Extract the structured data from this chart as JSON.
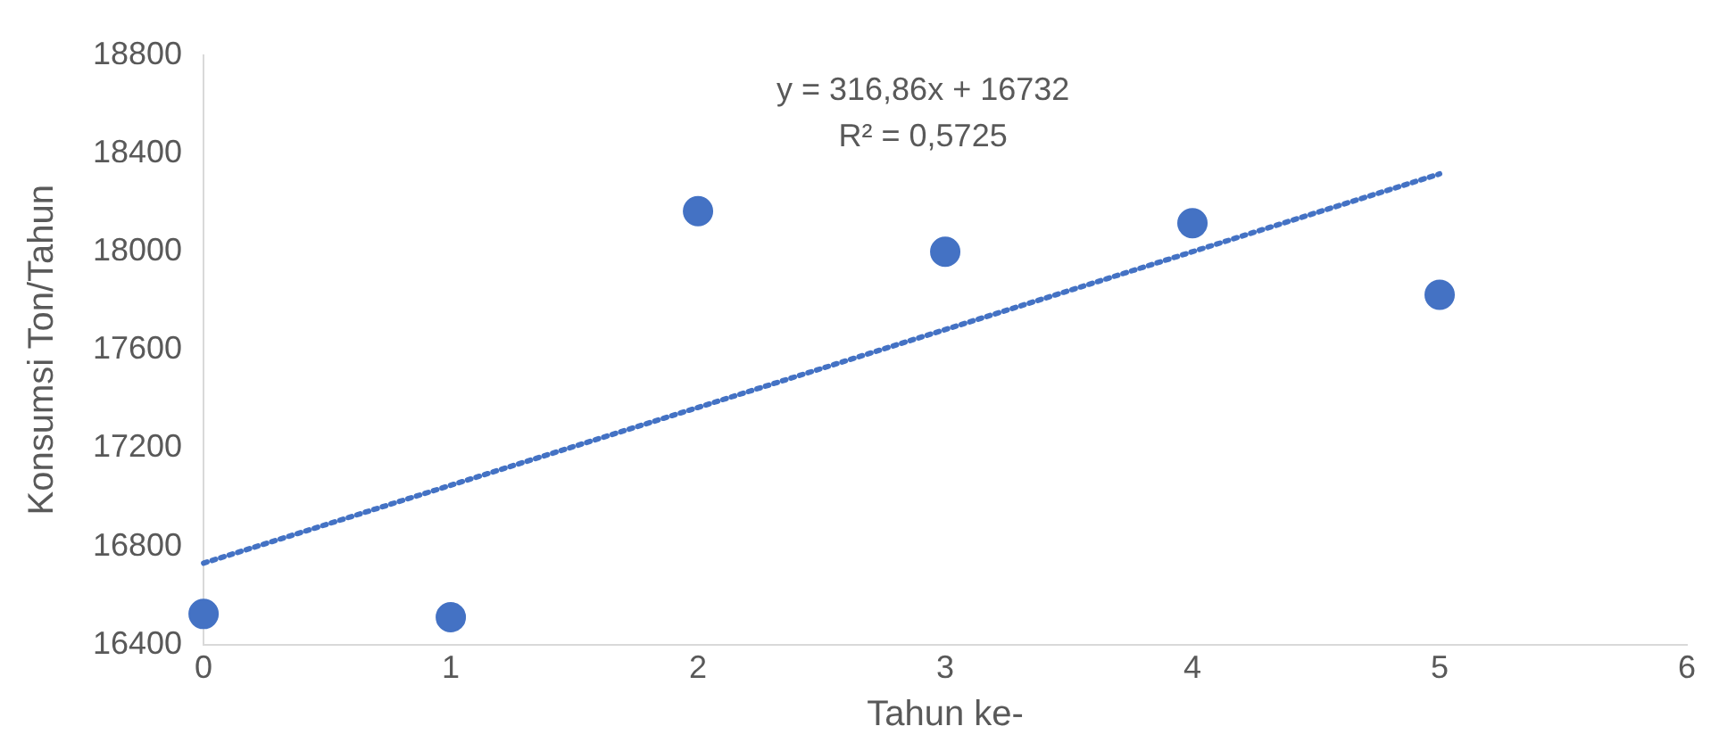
{
  "chart_data": {
    "type": "scatter",
    "xlabel": "Tahun ke-",
    "ylabel": "Konsumsi Ton/Tahun",
    "x": [
      0,
      1,
      2,
      3,
      4,
      5
    ],
    "xlim": [
      0,
      6
    ],
    "xticks": [
      0,
      1,
      2,
      3,
      4,
      5,
      6
    ],
    "ylim": [
      16400,
      18800
    ],
    "yticks": [
      16400,
      16800,
      17200,
      17600,
      18000,
      18400,
      18800
    ],
    "grid": false,
    "legend": false,
    "marker": "circle",
    "series": [
      {
        "color": "#4472c4",
        "values": [
          16525,
          16512,
          18164,
          17999,
          18115,
          17824
        ]
      },
      {
        "type": "line",
        "color": "#4472c4",
        "x": [
          0,
          5
        ],
        "values": [
          16732,
          18316
        ],
        "line_style": "dotted",
        "marker": "none"
      }
    ],
    "annotations": [
      "y = 316,86x + 16732",
      "R² = 0,5725"
    ]
  }
}
